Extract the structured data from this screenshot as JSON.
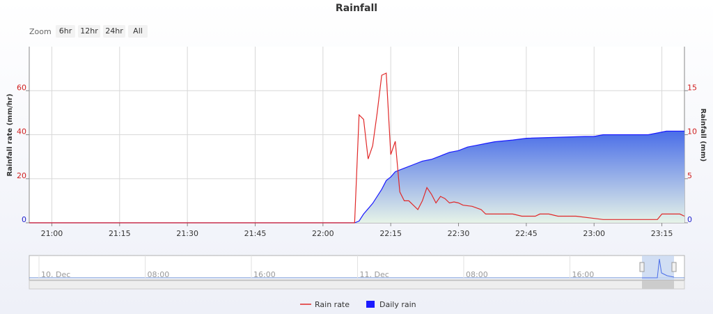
{
  "chart_data": {
    "type": "line",
    "title": "Rainfall",
    "range_selector": {
      "label": "Zoom",
      "buttons": [
        "6hr",
        "12hr",
        "24hr",
        "All"
      ]
    },
    "y_label": "Rainfall rate (mm/hr)",
    "y2_label": "Rainfall (mm)",
    "xlim": [
      "20:55",
      "23:20"
    ],
    "xticks": [
      "21:00",
      "21:15",
      "21:30",
      "21:45",
      "22:00",
      "22:15",
      "22:30",
      "22:45",
      "23:00",
      "23:15"
    ],
    "ylim": [
      0,
      80
    ],
    "yticks": [
      0,
      20,
      40,
      60
    ],
    "y2lim": [
      0,
      20
    ],
    "y2ticks": [
      0,
      5,
      10,
      15
    ],
    "grid": true,
    "series": [
      {
        "name": "Rain rate",
        "type": "line",
        "color": "#e02828",
        "x": [
          "20:55",
          "22:07",
          "22:08",
          "22:09",
          "22:10",
          "22:11",
          "22:12",
          "22:13",
          "22:14",
          "22:15",
          "22:16",
          "22:17",
          "22:18",
          "22:19",
          "22:20",
          "22:21",
          "22:22",
          "22:23",
          "22:24",
          "22:25",
          "22:26",
          "22:27",
          "22:28",
          "22:29",
          "22:30",
          "22:31",
          "22:33",
          "22:35",
          "22:36",
          "22:42",
          "22:44",
          "22:47",
          "22:48",
          "22:50",
          "22:52",
          "22:56",
          "23:00",
          "23:02",
          "23:14",
          "23:15",
          "23:19",
          "23:20"
        ],
        "values": [
          0,
          0,
          49,
          47,
          29,
          35,
          50,
          67,
          68,
          31,
          37,
          14,
          10,
          10,
          8,
          6,
          10,
          16,
          13,
          9,
          12,
          11,
          9,
          9.5,
          9,
          8,
          7.5,
          6,
          4,
          4,
          3,
          3,
          4,
          4,
          3,
          3,
          2,
          1.5,
          1.5,
          4,
          4,
          3
        ]
      },
      {
        "name": "Daily rain",
        "type": "area",
        "axis": "y2",
        "color": "#1a1aff",
        "x": [
          "20:55",
          "22:07",
          "22:08",
          "22:09",
          "22:10",
          "22:11",
          "22:12",
          "22:13",
          "22:14",
          "22:15",
          "22:16",
          "22:18",
          "22:20",
          "22:22",
          "22:24",
          "22:26",
          "22:28",
          "22:30",
          "22:32",
          "22:34",
          "22:36",
          "22:38",
          "22:42",
          "22:45",
          "22:58",
          "23:00",
          "23:02",
          "23:12",
          "23:14",
          "23:16",
          "23:20"
        ],
        "values": [
          0,
          0,
          0.2,
          1.0,
          1.6,
          2.2,
          3.0,
          3.8,
          4.8,
          5.2,
          5.8,
          6.2,
          6.6,
          7.0,
          7.2,
          7.6,
          8.0,
          8.2,
          8.6,
          8.8,
          9.0,
          9.2,
          9.4,
          9.6,
          9.8,
          9.8,
          10.0,
          10.0,
          10.2,
          10.4,
          10.4
        ]
      }
    ],
    "navigator": {
      "labels": [
        "10. Dec",
        "08:00",
        "16:00",
        "11. Dec",
        "08:00",
        "16:00"
      ]
    }
  }
}
